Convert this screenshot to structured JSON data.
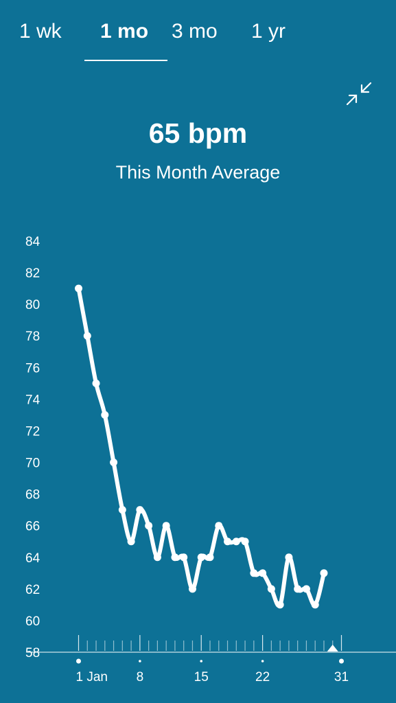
{
  "tabs": [
    {
      "label": "1 wk",
      "active": false
    },
    {
      "label": "1 mo",
      "active": true
    },
    {
      "label": "3 mo",
      "active": false
    },
    {
      "label": "1 yr",
      "active": false
    }
  ],
  "collapse_icon": "collapse-arrows-icon",
  "summary": {
    "value": "65 bpm",
    "label": "This Month Average"
  },
  "colors": {
    "background": "#0d7196",
    "line": "#ffffff"
  },
  "chart_data": {
    "type": "line",
    "title": "",
    "xlabel": "",
    "ylabel": "",
    "ylim": [
      58,
      84
    ],
    "y_ticks": [
      84,
      82,
      80,
      78,
      76,
      74,
      72,
      70,
      68,
      66,
      64,
      62,
      60,
      58
    ],
    "x_range": [
      1,
      31
    ],
    "x_tick_labels": [
      {
        "day": 1,
        "label": "1 Jan"
      },
      {
        "day": 8,
        "label": "8"
      },
      {
        "day": 15,
        "label": "15"
      },
      {
        "day": 22,
        "label": "22"
      },
      {
        "day": 31,
        "label": "31"
      }
    ],
    "series": [
      {
        "points": [
          {
            "x": 1,
            "y": 81
          },
          {
            "x": 2,
            "y": 78
          },
          {
            "x": 3,
            "y": 75
          },
          {
            "x": 4,
            "y": 73
          },
          {
            "x": 5,
            "y": 70
          },
          {
            "x": 6,
            "y": 67
          },
          {
            "x": 7,
            "y": 65
          },
          {
            "x": 8,
            "y": 67
          },
          {
            "x": 9,
            "y": 66
          },
          {
            "x": 10,
            "y": 64
          },
          {
            "x": 11,
            "y": 66
          },
          {
            "x": 12,
            "y": 64
          },
          {
            "x": 13,
            "y": 64
          },
          {
            "x": 14,
            "y": 62
          },
          {
            "x": 15,
            "y": 64
          },
          {
            "x": 16,
            "y": 64
          },
          {
            "x": 17,
            "y": 66
          },
          {
            "x": 18,
            "y": 65
          },
          {
            "x": 19,
            "y": 65
          },
          {
            "x": 20,
            "y": 65
          },
          {
            "x": 21,
            "y": 63
          },
          {
            "x": 22,
            "y": 63
          },
          {
            "x": 23,
            "y": 62
          },
          {
            "x": 24,
            "y": 61
          },
          {
            "x": 25,
            "y": 64
          },
          {
            "x": 26,
            "y": 62
          },
          {
            "x": 27,
            "y": 62
          },
          {
            "x": 28,
            "y": 61
          },
          {
            "x": 29,
            "y": 63
          }
        ]
      }
    ],
    "selected_marker_day": 30
  }
}
